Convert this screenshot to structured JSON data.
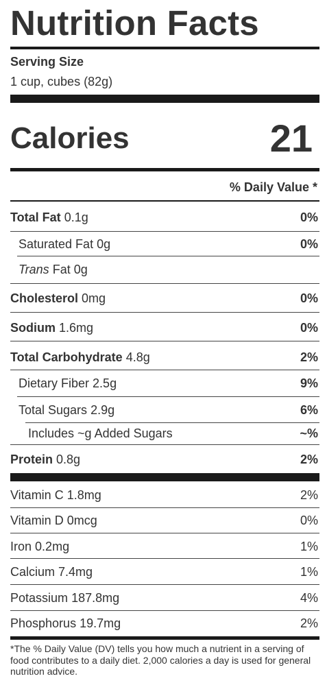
{
  "title": "Nutrition Facts",
  "serving": {
    "label": "Serving Size",
    "value": "1 cup, cubes (82g)"
  },
  "calories": {
    "label": "Calories",
    "value": "21"
  },
  "dv_header": "% Daily Value *",
  "nutrients": [
    {
      "name": "Total Fat",
      "amount": "0.1g",
      "dv": "0%"
    },
    {
      "name": "Saturated Fat",
      "amount": "0g",
      "dv": "0%"
    },
    {
      "prefix": "Trans",
      "name": "Fat",
      "amount": "0g",
      "dv": ""
    },
    {
      "name": "Cholesterol",
      "amount": "0mg",
      "dv": "0%"
    },
    {
      "name": "Sodium",
      "amount": "1.6mg",
      "dv": "0%"
    },
    {
      "name": "Total Carbohydrate",
      "amount": "4.8g",
      "dv": "2%"
    },
    {
      "name": "Dietary Fiber",
      "amount": "2.5g",
      "dv": "9%"
    },
    {
      "name": "Total Sugars",
      "amount": "2.9g",
      "dv": "6%"
    },
    {
      "name": "Includes ~g Added Sugars",
      "amount": "",
      "dv": "~%"
    },
    {
      "name": "Protein",
      "amount": "0.8g",
      "dv": "2%"
    }
  ],
  "vitamins": [
    {
      "name": "Vitamin C",
      "amount": "1.8mg",
      "dv": "2%"
    },
    {
      "name": "Vitamin D",
      "amount": "0mcg",
      "dv": "0%"
    },
    {
      "name": "Iron",
      "amount": "0.2mg",
      "dv": "1%"
    },
    {
      "name": "Calcium",
      "amount": "7.4mg",
      "dv": "1%"
    },
    {
      "name": "Potassium",
      "amount": "187.8mg",
      "dv": "4%"
    },
    {
      "name": "Phosphorus",
      "amount": "19.7mg",
      "dv": "2%"
    }
  ],
  "footnote": "*The % Daily Value (DV) tells you how much a nutrient in a serving of food contributes to a daily diet. 2,000 calories a day is used for general nutrition advice."
}
